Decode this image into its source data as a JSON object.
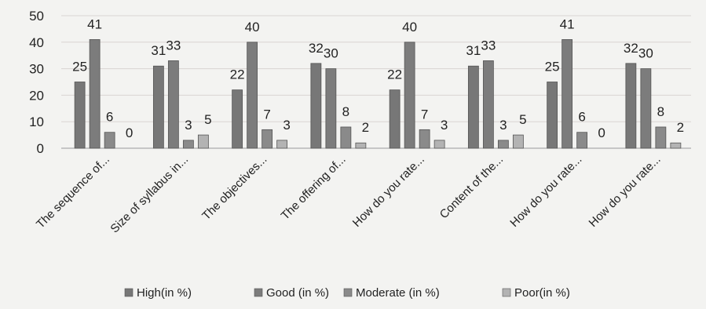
{
  "chart_data": {
    "type": "bar",
    "title": "",
    "xlabel": "",
    "ylabel": "",
    "ylim": [
      0,
      50
    ],
    "yticks": [
      0,
      10,
      20,
      30,
      40,
      50
    ],
    "grid": true,
    "legend_position": "bottom",
    "categories": [
      "The sequence of...",
      "Size of syllabus in...",
      "The objectives...",
      "The offering of...",
      "How do you rate...",
      "Content of the...",
      "How do you rate...",
      "How do you rate..."
    ],
    "series": [
      {
        "name": "High(in %)",
        "color": "#777777",
        "values": [
          25,
          31,
          22,
          32,
          22,
          31,
          25,
          32
        ]
      },
      {
        "name": "Good (in %)",
        "color": "#7c7c7c",
        "values": [
          41,
          33,
          40,
          30,
          40,
          33,
          41,
          30
        ]
      },
      {
        "name": "Moderate (in %)",
        "color": "#8a8a8a",
        "values": [
          6,
          3,
          7,
          8,
          7,
          3,
          6,
          8
        ]
      },
      {
        "name": "Poor(in %)",
        "color": "#b3b3b3",
        "values": [
          0,
          5,
          3,
          2,
          3,
          5,
          0,
          2
        ]
      }
    ]
  }
}
